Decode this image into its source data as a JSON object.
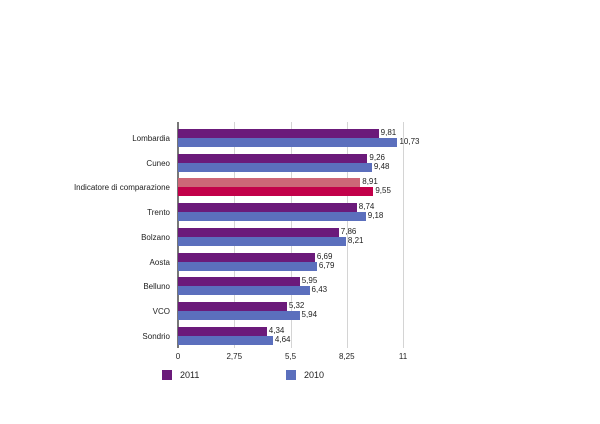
{
  "chart_data": {
    "type": "bar",
    "orientation": "horizontal",
    "title": "",
    "xlabel": "",
    "ylabel": "",
    "xlim": [
      0,
      11
    ],
    "x_ticks": [
      "0",
      "2,75",
      "5,5",
      "8,25",
      "11"
    ],
    "grid": true,
    "legend_position": "bottom",
    "categories": [
      "Lombardia",
      "Cuneo",
      "Indicatore di comparazione",
      "Trento",
      "Bolzano",
      "Aosta",
      "Belluno",
      "VCO",
      "Sondrio"
    ],
    "series": [
      {
        "name": "2011",
        "color": "#6b1a7a",
        "values": [
          9.81,
          9.26,
          8.91,
          8.74,
          7.86,
          6.69,
          5.95,
          5.32,
          4.34
        ],
        "labels": [
          "9,81",
          "9,26",
          "8,91",
          "8,74",
          "7,86",
          "6,69",
          "5,95",
          "5,32",
          "4,34"
        ]
      },
      {
        "name": "2010",
        "color": "#5b6fbd",
        "values": [
          10.73,
          9.48,
          9.55,
          9.18,
          8.21,
          6.79,
          6.43,
          5.94,
          4.64
        ],
        "labels": [
          "10,73",
          "9,48",
          "9,55",
          "9,18",
          "8,21",
          "6,79",
          "6,43",
          "5,94",
          "4,64"
        ]
      }
    ],
    "highlight": {
      "category": "Indicatore di comparazione",
      "colors": [
        "#cc6677",
        "#c2004a"
      ]
    }
  },
  "legend": [
    {
      "label": "2011",
      "color": "#6b1a7a"
    },
    {
      "label": "2010",
      "color": "#5b6fbd"
    }
  ]
}
